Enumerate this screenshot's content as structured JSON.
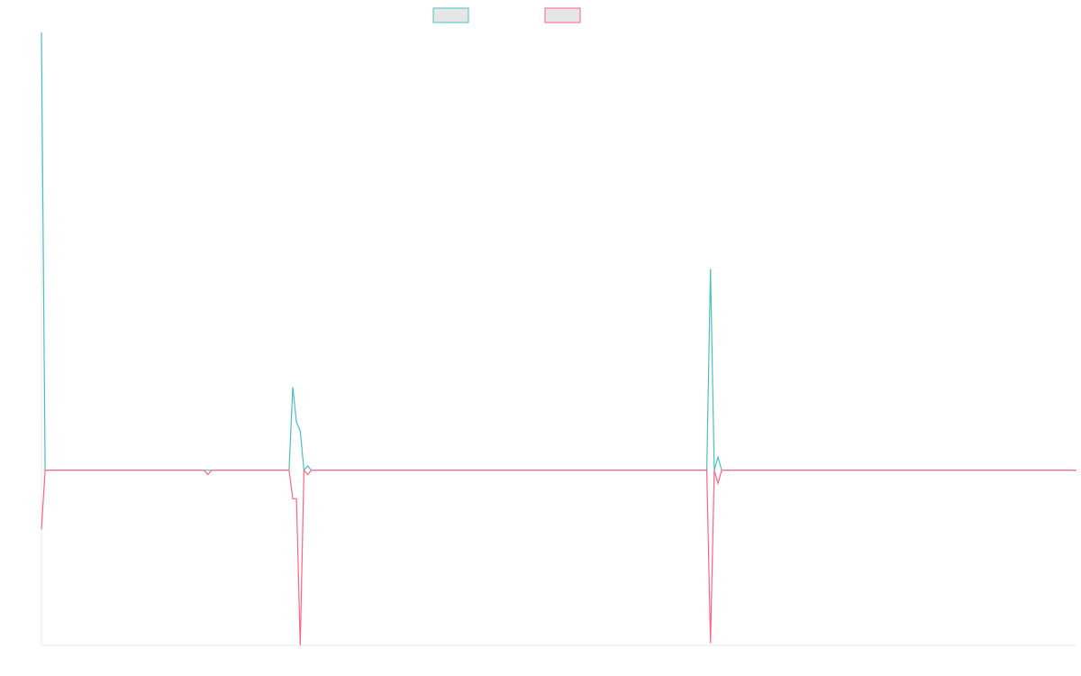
{
  "chart_data": {
    "type": "line",
    "title": "",
    "xlabel": "",
    "ylabel": "",
    "legend_position": "top-center",
    "grid": false,
    "ylim": [
      -0.4,
      1.0
    ],
    "series": [
      {
        "color": "#4bc0c0",
        "fill": "#e6e6e6",
        "points": [
          [
            0,
            1.0
          ],
          [
            1,
            0
          ],
          [
            44,
            0
          ],
          [
            45,
            0
          ],
          [
            46,
            0
          ],
          [
            47,
            0
          ],
          [
            67,
            0
          ],
          [
            68,
            0.19
          ],
          [
            69,
            0.11
          ],
          [
            70,
            0.09
          ],
          [
            71,
            0
          ],
          [
            72,
            0.01
          ],
          [
            73,
            0
          ],
          [
            180,
            0
          ],
          [
            181,
            0.46
          ],
          [
            182,
            0
          ],
          [
            183,
            0.03
          ],
          [
            184,
            0
          ],
          [
            280,
            0
          ]
        ]
      },
      {
        "color": "#ff6384",
        "fill": "#e6e6e6",
        "points": [
          [
            0,
            -0.135
          ],
          [
            1,
            0
          ],
          [
            44,
            0
          ],
          [
            45,
            -0.01
          ],
          [
            46,
            0
          ],
          [
            47,
            0
          ],
          [
            67,
            0
          ],
          [
            68,
            -0.065
          ],
          [
            69,
            -0.065
          ],
          [
            70,
            -0.4
          ],
          [
            71,
            0
          ],
          [
            72,
            -0.01
          ],
          [
            73,
            0
          ],
          [
            180,
            0
          ],
          [
            181,
            -0.395
          ],
          [
            182,
            0
          ],
          [
            183,
            -0.03
          ],
          [
            184,
            0
          ],
          [
            280,
            0
          ]
        ]
      }
    ]
  }
}
